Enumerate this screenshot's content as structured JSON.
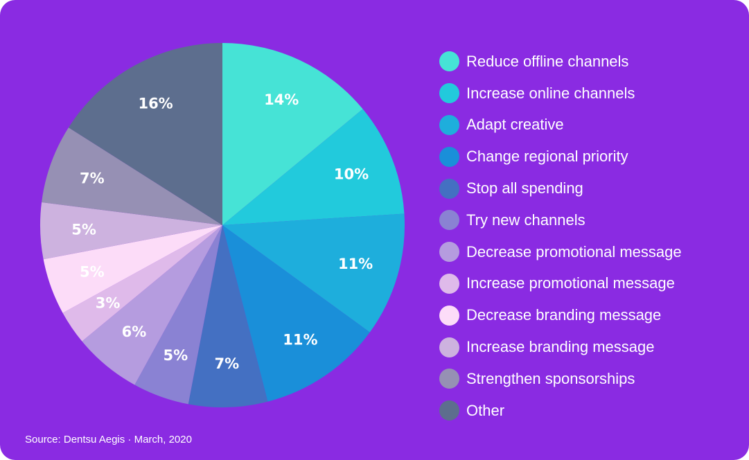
{
  "chart_data": {
    "type": "pie",
    "slices": [
      {
        "label": "Reduce offline channels",
        "value": 14,
        "display": "14%",
        "color": "#46e3d6"
      },
      {
        "label": "Increase online channels",
        "value": 10,
        "display": "10%",
        "color": "#22cadc"
      },
      {
        "label": "Adapt creative",
        "value": 11,
        "display": "11%",
        "color": "#1eaedc"
      },
      {
        "label": "Change regional priority",
        "value": 11,
        "display": "11%",
        "color": "#1a8fd9"
      },
      {
        "label": "Stop all spending",
        "value": 7,
        "display": "7%",
        "color": "#4470c2"
      },
      {
        "label": "Try new channels",
        "value": 5,
        "display": "5%",
        "color": "#8a82d3"
      },
      {
        "label": "Decrease promotional message",
        "value": 6,
        "display": "6%",
        "color": "#b59cdf"
      },
      {
        "label": "Increase promotional message",
        "value": 3,
        "display": "3%",
        "color": "#dfbaea"
      },
      {
        "label": "Decrease branding message",
        "value": 5,
        "display": "5%",
        "color": "#fcdcf8"
      },
      {
        "label": "Increase branding message",
        "value": 5,
        "display": "5%",
        "color": "#cdb2df"
      },
      {
        "label": "Strengthen sponsorships",
        "value": 7,
        "display": "7%",
        "color": "#9690b4"
      },
      {
        "label": "Other",
        "value": 16,
        "display": "16%",
        "color": "#5d6e8e"
      }
    ],
    "legend_position": "right",
    "start_angle": "12 o'clock",
    "direction": "clockwise"
  },
  "source": "Source: Dentsu Aegis · March, 2020",
  "colors": {
    "background": "#8a2be2",
    "text": "#ffffff"
  }
}
